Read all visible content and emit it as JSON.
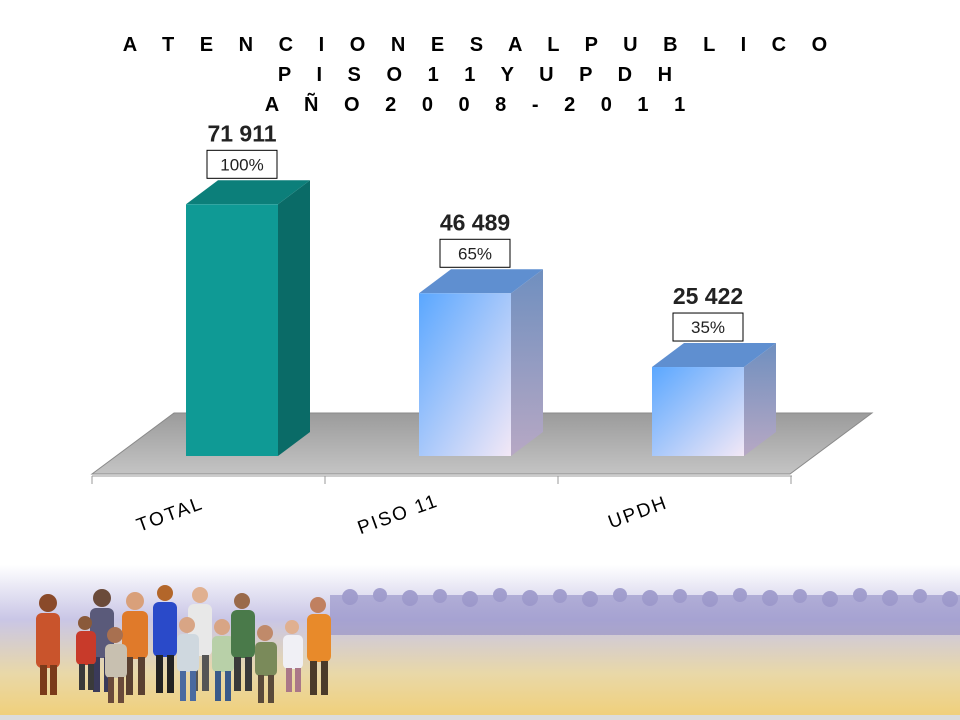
{
  "title_lines": [
    "A T E N C I O N E S  A L  P U B L I C O",
    "P I S O  1 1  Y  U P D H",
    "A Ñ O  2 0 0 8  -  2 0 1 1"
  ],
  "chart_data": {
    "type": "bar",
    "categories": [
      "TOTAL",
      "PISO 11",
      "UPDH"
    ],
    "values": [
      71911,
      46489,
      25422
    ],
    "value_labels": [
      "71 911",
      "46 489",
      "25 422"
    ],
    "percent_labels": [
      "100%",
      "65%",
      "35%"
    ],
    "ylim": [
      0,
      80000
    ],
    "grid": false,
    "colors": {
      "total_front": "#0f9a95",
      "total_side": "#0a6b67",
      "total_top": "#0c7f7a",
      "blue_front_top": "#5aa7ff",
      "blue_front_bottom": "#f3e8f6",
      "blue_side": "#8aa0c4",
      "blue_top": "#5f8fd0",
      "floor": "#a8a8a8"
    }
  },
  "banner": {
    "description_icon": "crowd-illustration"
  }
}
